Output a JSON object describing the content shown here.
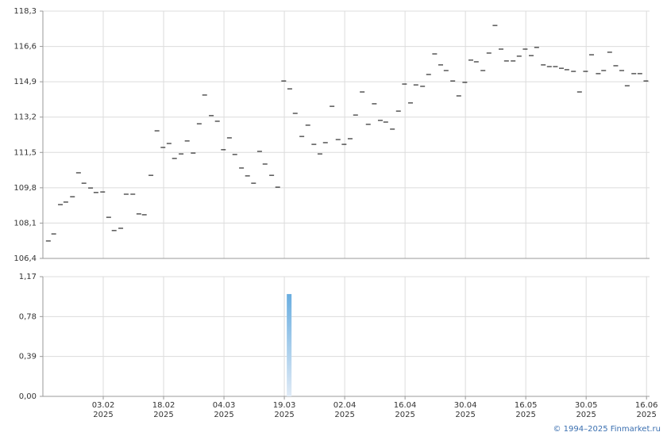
{
  "chart_data": [
    {
      "type": "dash",
      "color": "#000000",
      "x": [
        0.9,
        1.8,
        2.9,
        3.8,
        4.9,
        5.9,
        6.8,
        7.9,
        8.8,
        9.9,
        10.9,
        11.8,
        12.9,
        13.8,
        14.9,
        15.9,
        16.8,
        17.9,
        18.9,
        19.9,
        20.9,
        21.8,
        22.9,
        23.9,
        24.9,
        25.9,
        26.8,
        27.9,
        28.9,
        29.9,
        30.9,
        31.8,
        32.9,
        33.9,
        34.9,
        35.9,
        36.8,
        37.9,
        38.9,
        39.9,
        40.9,
        41.8,
        42.9,
        43.9,
        44.9,
        45.9,
        46.8,
        47.9,
        48.9,
        49.9,
        50.9,
        51.8,
        52.9,
        53.9,
        54.9,
        55.9,
        56.8,
        57.9,
        58.9,
        59.9,
        60.9,
        61.8,
        62.9,
        63.9,
        64.9,
        65.9,
        66.8,
        67.9,
        68.9,
        69.9,
        70.9,
        71.8,
        72.9,
        73.9,
        74.9,
        75.9,
        76.8,
        77.9,
        78.9,
        79.9,
        80.9,
        81.8,
        82.9,
        83.9,
        84.9,
        85.9,
        86.8,
        87.9,
        88.9,
        89.9,
        90.9,
        92.0,
        92.9,
        93.9,
        94.9,
        95.9,
        96.8,
        97.9,
        98.9,
        99.9
      ],
      "values": [
        107.24,
        107.58,
        108.99,
        109.11,
        109.37,
        110.52,
        110.02,
        109.79,
        109.57,
        109.6,
        108.38,
        107.74,
        107.85,
        109.49,
        109.49,
        108.54,
        108.5,
        110.4,
        112.54,
        111.74,
        111.93,
        111.21,
        111.43,
        112.05,
        111.47,
        112.88,
        114.26,
        113.27,
        113.0,
        111.63,
        112.2,
        111.4,
        110.75,
        110.37,
        110.02,
        111.55,
        110.94,
        110.4,
        109.83,
        114.94,
        114.56,
        113.38,
        112.27,
        112.81,
        111.89,
        111.43,
        111.97,
        113.72,
        112.12,
        111.89,
        112.16,
        113.3,
        114.41,
        112.85,
        113.84,
        113.04,
        112.96,
        112.62,
        113.49,
        114.79,
        113.88,
        114.75,
        114.68,
        115.25,
        116.24,
        115.71,
        115.44,
        114.94,
        114.22,
        114.87,
        115.94,
        115.86,
        115.44,
        116.28,
        117.61,
        116.47,
        115.9,
        115.9,
        116.13,
        116.47,
        116.16,
        116.55,
        115.71,
        115.63,
        115.63,
        115.55,
        115.48,
        115.4,
        114.41,
        115.4,
        116.2,
        115.29,
        115.44,
        116.32,
        115.67,
        115.44,
        114.71,
        115.29,
        115.29,
        114.94
      ],
      "xlim": [
        0,
        100.5
      ],
      "ylim": [
        106.4,
        118.3
      ],
      "yticks": [
        {
          "value": 106.4,
          "label": "106,4"
        },
        {
          "value": 108.1,
          "label": "108,1"
        },
        {
          "value": 109.8,
          "label": "109,8"
        },
        {
          "value": 111.5,
          "label": "111,5"
        },
        {
          "value": 113.2,
          "label": "113,2"
        },
        {
          "value": 114.9,
          "label": "114,9"
        },
        {
          "value": 116.6,
          "label": "116,6"
        },
        {
          "value": 118.3,
          "label": "118,3"
        }
      ],
      "grid": true
    },
    {
      "type": "bar",
      "color": "#6aaee0",
      "x": [
        40.8
      ],
      "values": [
        1.0
      ],
      "xlim": [
        0,
        100.5
      ],
      "ylim": [
        0,
        1.17
      ],
      "yticks": [
        {
          "value": 0,
          "label": "0,00"
        },
        {
          "value": 0.39,
          "label": "0,39"
        },
        {
          "value": 0.78,
          "label": "0,78"
        },
        {
          "value": 1.17,
          "label": "1,17"
        }
      ],
      "xticks": [
        {
          "value": 10,
          "label": "03.02\n2025"
        },
        {
          "value": 20,
          "label": "18.02\n2025"
        },
        {
          "value": 30,
          "label": "04.03\n2025"
        },
        {
          "value": 40,
          "label": "19.03\n2025"
        },
        {
          "value": 50,
          "label": "02.04\n2025"
        },
        {
          "value": 60,
          "label": "16.04\n2025"
        },
        {
          "value": 70,
          "label": "30.04\n2025"
        },
        {
          "value": 80,
          "label": "16.05\n2025"
        },
        {
          "value": 90,
          "label": "30.05\n2025"
        },
        {
          "value": 100,
          "label": "16.06\n2025"
        }
      ],
      "grid": true
    }
  ],
  "credit": "© 1994–2025 Finmarket.ru"
}
